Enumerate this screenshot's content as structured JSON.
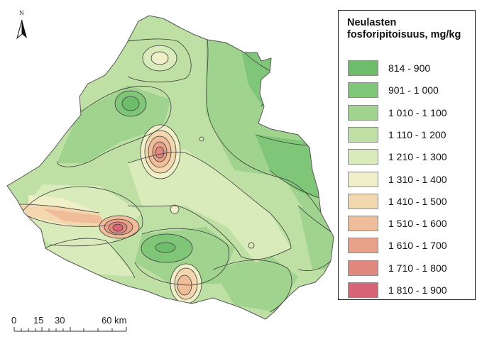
{
  "legend": {
    "title_line1": "Neulasten",
    "title_line2": "fosforipitoisuus, mg/kg",
    "classes": [
      {
        "label": "814 - 900",
        "color": "#6dbd6b"
      },
      {
        "label": "901 - 1 000",
        "color": "#80c679"
      },
      {
        "label": "1 010 - 1 100",
        "color": "#9fd38e"
      },
      {
        "label": "1 110 - 1 200",
        "color": "#bee0a4"
      },
      {
        "label": "1 210 - 1 300",
        "color": "#d9ebba"
      },
      {
        "label": "1 310 - 1 400",
        "color": "#f0f0c8"
      },
      {
        "label": "1 410 - 1 500",
        "color": "#f3d7ae"
      },
      {
        "label": "1 510 - 1 600",
        "color": "#efbd99"
      },
      {
        "label": "1 610 - 1 700",
        "color": "#e9a28a"
      },
      {
        "label": "1 710 - 1 800",
        "color": "#e0877e"
      },
      {
        "label": "1 810 - 1 900",
        "color": "#d76477"
      }
    ]
  },
  "north_arrow": {
    "letter": "N",
    "icon": "north-arrow-icon"
  },
  "scale_bar": {
    "labels": [
      "0",
      "15",
      "30",
      "60 km"
    ]
  }
}
